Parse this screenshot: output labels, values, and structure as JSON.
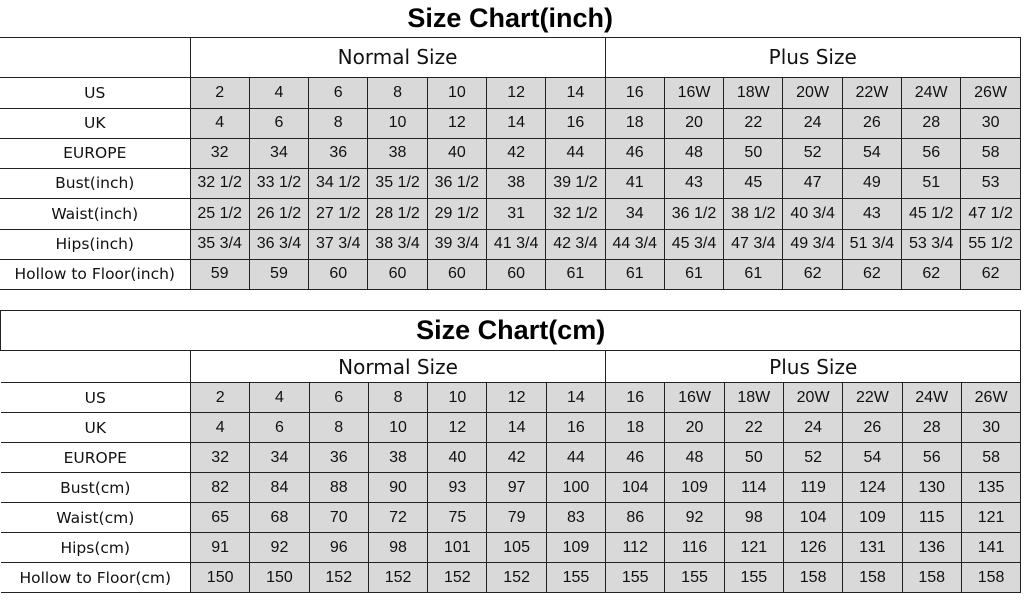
{
  "charts": [
    {
      "title": "Size Chart(inch)",
      "groups": [
        "Normal Size",
        "Plus Size"
      ],
      "rows": [
        {
          "label": "US",
          "values": [
            "2",
            "4",
            "6",
            "8",
            "10",
            "12",
            "14",
            "16",
            "16W",
            "18W",
            "20W",
            "22W",
            "24W",
            "26W"
          ]
        },
        {
          "label": "UK",
          "values": [
            "4",
            "6",
            "8",
            "10",
            "12",
            "14",
            "16",
            "18",
            "20",
            "22",
            "24",
            "26",
            "28",
            "30"
          ]
        },
        {
          "label": "EUROPE",
          "values": [
            "32",
            "34",
            "36",
            "38",
            "40",
            "42",
            "44",
            "46",
            "48",
            "50",
            "52",
            "54",
            "56",
            "58"
          ]
        },
        {
          "label": "Bust(inch)",
          "values": [
            "32 1/2",
            "33 1/2",
            "34 1/2",
            "35 1/2",
            "36 1/2",
            "38",
            "39 1/2",
            "41",
            "43",
            "45",
            "47",
            "49",
            "51",
            "53"
          ]
        },
        {
          "label": "Waist(inch)",
          "values": [
            "25 1/2",
            "26 1/2",
            "27 1/2",
            "28 1/2",
            "29 1/2",
            "31",
            "32 1/2",
            "34",
            "36 1/2",
            "38 1/2",
            "40 3/4",
            "43",
            "45 1/2",
            "47 1/2"
          ]
        },
        {
          "label": "Hips(inch)",
          "values": [
            "35 3/4",
            "36 3/4",
            "37 3/4",
            "38 3/4",
            "39 3/4",
            "41 3/4",
            "42 3/4",
            "44 3/4",
            "45 3/4",
            "47 3/4",
            "49 3/4",
            "51 3/4",
            "53 3/4",
            "55 1/2"
          ]
        },
        {
          "label": "Hollow to Floor(inch)",
          "values": [
            "59",
            "59",
            "60",
            "60",
            "60",
            "60",
            "61",
            "61",
            "61",
            "61",
            "62",
            "62",
            "62",
            "62"
          ]
        }
      ]
    },
    {
      "title": "Size Chart(cm)",
      "groups": [
        "Normal Size",
        "Plus Size"
      ],
      "rows": [
        {
          "label": "US",
          "values": [
            "2",
            "4",
            "6",
            "8",
            "10",
            "12",
            "14",
            "16",
            "16W",
            "18W",
            "20W",
            "22W",
            "24W",
            "26W"
          ]
        },
        {
          "label": "UK",
          "values": [
            "4",
            "6",
            "8",
            "10",
            "12",
            "14",
            "16",
            "18",
            "20",
            "22",
            "24",
            "26",
            "28",
            "30"
          ]
        },
        {
          "label": "EUROPE",
          "values": [
            "32",
            "34",
            "36",
            "38",
            "40",
            "42",
            "44",
            "46",
            "48",
            "50",
            "52",
            "54",
            "56",
            "58"
          ]
        },
        {
          "label": "Bust(cm)",
          "values": [
            "82",
            "84",
            "88",
            "90",
            "93",
            "97",
            "100",
            "104",
            "109",
            "114",
            "119",
            "124",
            "130",
            "135"
          ]
        },
        {
          "label": "Waist(cm)",
          "values": [
            "65",
            "68",
            "70",
            "72",
            "75",
            "79",
            "83",
            "86",
            "92",
            "98",
            "104",
            "109",
            "115",
            "121"
          ]
        },
        {
          "label": "Hips(cm)",
          "values": [
            "91",
            "92",
            "96",
            "98",
            "101",
            "105",
            "109",
            "112",
            "116",
            "121",
            "126",
            "131",
            "136",
            "141"
          ]
        },
        {
          "label": "Hollow to Floor(cm)",
          "values": [
            "150",
            "150",
            "152",
            "152",
            "152",
            "152",
            "155",
            "155",
            "155",
            "155",
            "158",
            "158",
            "158",
            "158"
          ]
        }
      ]
    }
  ],
  "colors": {
    "cell_fill": "#d9d9d9",
    "border": "#222222"
  }
}
